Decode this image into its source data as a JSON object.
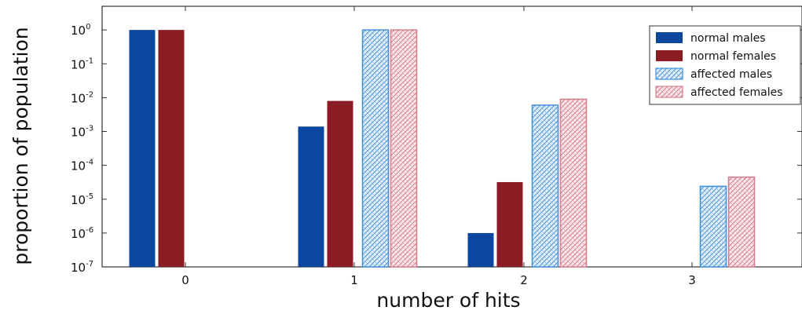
{
  "chart_data": {
    "type": "bar",
    "xlabel": "number of hits",
    "ylabel": "proportion of population",
    "yscale": "log",
    "ylim": [
      1e-07,
      5
    ],
    "yticks": [
      {
        "value": 1,
        "base": "10",
        "exp": "0"
      },
      {
        "value": 0.1,
        "base": "10",
        "exp": "-1"
      },
      {
        "value": 0.01,
        "base": "10",
        "exp": "-2"
      },
      {
        "value": 0.001,
        "base": "10",
        "exp": "-3"
      },
      {
        "value": 0.0001,
        "base": "10",
        "exp": "-4"
      },
      {
        "value": 1e-05,
        "base": "10",
        "exp": "-5"
      },
      {
        "value": 1e-06,
        "base": "10",
        "exp": "-6"
      },
      {
        "value": 1e-07,
        "base": "10",
        "exp": "-7"
      }
    ],
    "categories": [
      "0",
      "1",
      "2",
      "3"
    ],
    "legend_position": "top-right",
    "grid": false,
    "series": [
      {
        "name": "normal males",
        "color": "#0b47a1",
        "pattern": "solid",
        "values": [
          1.0,
          0.0014,
          1e-06,
          null
        ]
      },
      {
        "name": "normal females",
        "color": "#8c1c24",
        "pattern": "solid",
        "values": [
          1.0,
          0.008,
          3.2e-05,
          null
        ]
      },
      {
        "name": "affected males",
        "color": "#3f8fd8",
        "pattern": "hatched",
        "values": [
          null,
          1.0,
          0.006,
          2.4e-05
        ]
      },
      {
        "name": "affected females",
        "color": "#d77b8c",
        "pattern": "hatched",
        "values": [
          null,
          1.0,
          0.009,
          4.5e-05
        ]
      }
    ]
  }
}
